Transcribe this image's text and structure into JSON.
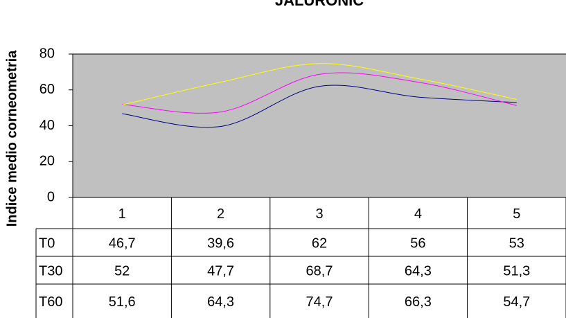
{
  "chart_data": {
    "type": "line",
    "title": "JALURONIC",
    "y_label": "Indice medio corneometria",
    "categories": [
      "1",
      "2",
      "3",
      "4",
      "5"
    ],
    "series": [
      {
        "name": "T0",
        "color": "#000080",
        "values": [
          46.7,
          39.6,
          62,
          56,
          53
        ],
        "value_labels": [
          "46,7",
          "39,6",
          "62",
          "56",
          "53"
        ]
      },
      {
        "name": "T30",
        "color": "#ff00ff",
        "values": [
          52,
          47.7,
          68.7,
          64.3,
          51.3
        ],
        "value_labels": [
          "52",
          "47,7",
          "68,7",
          "64,3",
          "51,3"
        ]
      },
      {
        "name": "T60",
        "color": "#ffff00",
        "values": [
          51.6,
          64.3,
          74.7,
          66.3,
          54.7
        ],
        "value_labels": [
          "51,6",
          "64,3",
          "74,7",
          "66,3",
          "54,7"
        ]
      }
    ],
    "ylim": [
      0,
      80
    ],
    "yticks": [
      0,
      20,
      40,
      60,
      80
    ],
    "smooth": true,
    "plot_background": "#c0c0c0"
  }
}
